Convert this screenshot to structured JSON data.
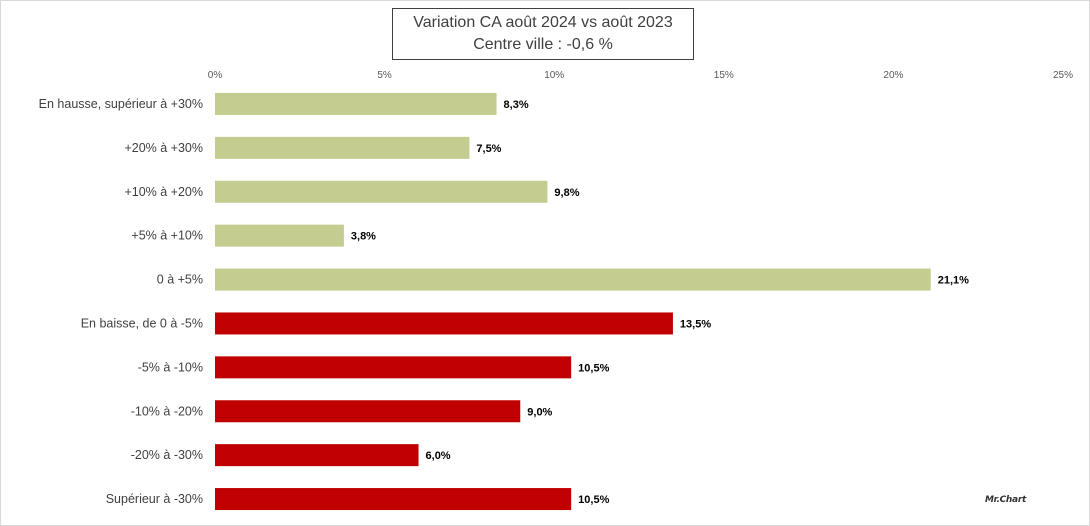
{
  "chart_data": {
    "type": "bar",
    "orientation": "horizontal",
    "title": "Variation CA août 2024 vs août 2023",
    "subtitle": "Centre ville  : -0,6 %",
    "xlim": [
      0,
      25
    ],
    "x_ticks": [
      "0%",
      "5%",
      "10%",
      "15%",
      "20%",
      "25%"
    ],
    "categories": [
      "En hausse, supérieur à +30%",
      "+20% à +30%",
      "+10% à +20%",
      "+5% à +10%",
      "0 à +5%",
      "En baisse, de 0 à -5%",
      "-5% à -10%",
      "-10% à -20%",
      "-20% à -30%",
      "Supérieur à -30%"
    ],
    "values": [
      8.3,
      7.5,
      9.8,
      3.8,
      21.1,
      13.5,
      10.5,
      9.0,
      6.0,
      10.5
    ],
    "value_labels": [
      "8,3%",
      "7,5%",
      "9,8%",
      "3,8%",
      "21,1%",
      "13,5%",
      "10,5%",
      "9,0%",
      "6,0%",
      "10,5%"
    ],
    "colors": [
      "#c4cc8f",
      "#c4cc8f",
      "#c4cc8f",
      "#c4cc8f",
      "#c4cc8f",
      "#c00000",
      "#c00000",
      "#c00000",
      "#c00000",
      "#c00000"
    ],
    "grid": false,
    "legend": "none"
  },
  "watermark": "Mr.Chart"
}
